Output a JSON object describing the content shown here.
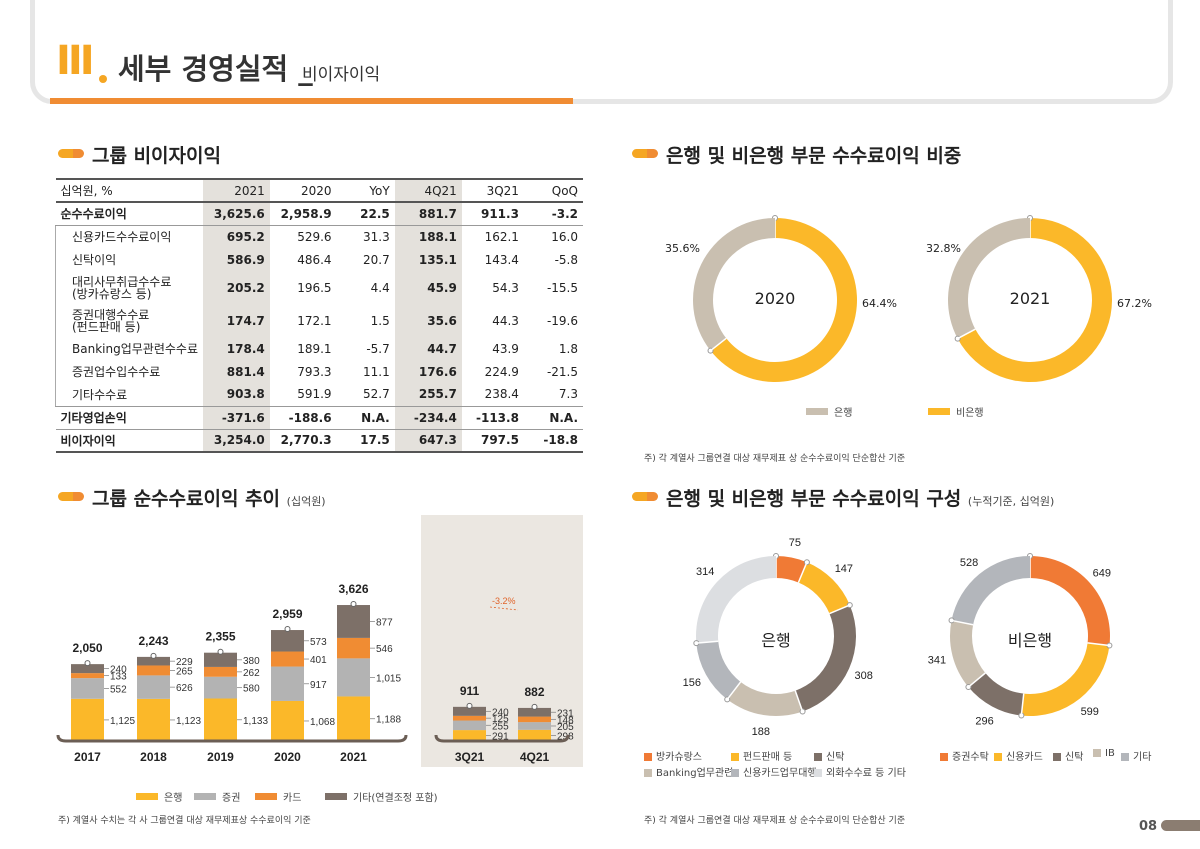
{
  "header": {
    "roman": "III",
    "title": "세부 경영실적 _",
    "subtitle": "비이자이익"
  },
  "sections": {
    "table_title": "그룹 비이자이익",
    "trend_title": "그룹 순수수료이익 추이",
    "trend_unit": "(십억원)",
    "share_title": "은행 및 비은행 부문 수수료이익 비중",
    "comp_title": "은행 및 비은행 부문 수수료이익 구성",
    "comp_unit": "(누적기준, 십억원)"
  },
  "table": {
    "headers": [
      "십억원, %",
      "2021",
      "2020",
      "YoY",
      "4Q21",
      "3Q21",
      "QoQ"
    ],
    "rows": [
      {
        "label": "순수수료이익",
        "v": [
          "3,625.6",
          "2,958.9",
          "22.5",
          "881.7",
          "911.3",
          "-3.2"
        ],
        "kind": "top"
      },
      {
        "label": "신용카드수수료이익",
        "v": [
          "695.2",
          "529.6",
          "31.3",
          "188.1",
          "162.1",
          "16.0"
        ],
        "kind": "sub"
      },
      {
        "label": "신탁이익",
        "v": [
          "586.9",
          "486.4",
          "20.7",
          "135.1",
          "143.4",
          "-5.8"
        ],
        "kind": "sub"
      },
      {
        "label": "대리사무취급수수료\n(방카슈랑스 등)",
        "v": [
          "205.2",
          "196.5",
          "4.4",
          "45.9",
          "54.3",
          "-15.5"
        ],
        "kind": "sub tall"
      },
      {
        "label": "증권대행수수료\n(펀드판매 등)",
        "v": [
          "174.7",
          "172.1",
          "1.5",
          "35.6",
          "44.3",
          "-19.6"
        ],
        "kind": "sub tall"
      },
      {
        "label": "Banking업무관련수수료",
        "v": [
          "178.4",
          "189.1",
          "-5.7",
          "44.7",
          "43.9",
          "1.8"
        ],
        "kind": "sub"
      },
      {
        "label": "증권업수입수수료",
        "v": [
          "881.4",
          "793.3",
          "11.1",
          "176.6",
          "224.9",
          "-21.5"
        ],
        "kind": "sub"
      },
      {
        "label": "기타수수료",
        "v": [
          "903.8",
          "591.9",
          "52.7",
          "255.7",
          "238.4",
          "7.3"
        ],
        "kind": "sub endsub"
      },
      {
        "label": "기타영업손익",
        "v": [
          "-371.6",
          "-188.6",
          "N.A.",
          "-234.4",
          "-113.8",
          "N.A."
        ],
        "kind": "top"
      },
      {
        "label": "비이자이익",
        "v": [
          "3,254.0",
          "2,770.3",
          "17.5",
          "647.3",
          "797.5",
          "-18.8"
        ],
        "kind": "last"
      }
    ]
  },
  "colors": {
    "bank": "#fbb829",
    "securities": "#b3b3b3",
    "card": "#f08c33",
    "other": "#7d7068",
    "nonbank_share": "#fbb829",
    "bank_share": "#c9bfb0",
    "panel_bg": "#ebe7e1"
  },
  "chart_data": [
    {
      "type": "bar",
      "stacked": true,
      "categories": [
        "2017",
        "2018",
        "2019",
        "2020",
        "2021"
      ],
      "totals": [
        "2,050",
        "2,243",
        "2,355",
        "2,959",
        "3,626"
      ],
      "series": [
        {
          "name": "은행",
          "values": [
            1125,
            1123,
            1133,
            1068,
            1188
          ],
          "labels": [
            "1,125",
            "1,123",
            "1,133",
            "1,068",
            "1,188"
          ]
        },
        {
          "name": "증권",
          "values": [
            552,
            626,
            580,
            917,
            1015
          ],
          "labels": [
            "552",
            "626",
            "580",
            "917",
            "1,015"
          ]
        },
        {
          "name": "카드",
          "values": [
            133,
            265,
            262,
            401,
            546
          ],
          "labels": [
            "133",
            "265",
            "262",
            "401",
            "546"
          ]
        },
        {
          "name": "기타(연결조정 포함)",
          "values": [
            240,
            229,
            380,
            573,
            877
          ],
          "labels": [
            "240",
            "229",
            "380",
            "573",
            "877"
          ]
        }
      ]
    },
    {
      "type": "bar",
      "stacked": true,
      "categories": [
        "3Q21",
        "4Q21"
      ],
      "totals": [
        "911",
        "882"
      ],
      "annotation": "-3.2%",
      "series": [
        {
          "name": "은행",
          "values": [
            291,
            298
          ],
          "labels": [
            "291",
            "298"
          ]
        },
        {
          "name": "증권",
          "values": [
            255,
            205
          ],
          "labels": [
            "255",
            "205"
          ]
        },
        {
          "name": "카드",
          "values": [
            125,
            148
          ],
          "labels": [
            "125",
            "148"
          ]
        },
        {
          "name": "기타(연결조정 포함)",
          "values": [
            240,
            231
          ],
          "labels": [
            "240",
            "231"
          ]
        }
      ]
    },
    {
      "type": "pie",
      "donut": true,
      "center": "2020",
      "slices": [
        {
          "name": "비은행",
          "value": 64.4,
          "label": "64.4%"
        },
        {
          "name": "은행",
          "value": 35.6,
          "label": "35.6%"
        }
      ]
    },
    {
      "type": "pie",
      "donut": true,
      "center": "2021",
      "slices": [
        {
          "name": "비은행",
          "value": 67.2,
          "label": "67.2%"
        },
        {
          "name": "은행",
          "value": 32.8,
          "label": "32.8%"
        }
      ]
    },
    {
      "type": "pie",
      "donut": true,
      "center": "은행",
      "slices": [
        {
          "name": "방카슈랑스",
          "value": 75,
          "label": "75"
        },
        {
          "name": "펀드판매 등",
          "value": 147,
          "label": "147"
        },
        {
          "name": "신탁",
          "value": 308,
          "label": "308"
        },
        {
          "name": "Banking업무관련",
          "value": 188,
          "label": "188"
        },
        {
          "name": "신용카드업무대행",
          "value": 156,
          "label": "156"
        },
        {
          "name": "외화수수료 등 기타",
          "value": 314,
          "label": "314"
        }
      ]
    },
    {
      "type": "pie",
      "donut": true,
      "center": "비은행",
      "slices": [
        {
          "name": "증권수탁",
          "value": 649,
          "label": "649"
        },
        {
          "name": "신용카드",
          "value": 599,
          "label": "599"
        },
        {
          "name": "신탁",
          "value": 296,
          "label": "296"
        },
        {
          "name": "IB",
          "value": 341,
          "label": "341"
        },
        {
          "name": "기타",
          "value": 528,
          "label": "528"
        }
      ]
    }
  ],
  "legends": {
    "share": [
      "은행",
      "비은행"
    ],
    "trend": [
      "은행",
      "증권",
      "카드",
      "기타(연결조정 포함)"
    ],
    "bank_comp": [
      "방카슈랑스",
      "펀드판매 등",
      "신탁",
      "Banking업무관련",
      "신용카드업무대행",
      "외화수수료 등 기타"
    ],
    "nonbank_comp": [
      "증권수탁",
      "신용카드",
      "신탁",
      "IB",
      "기타"
    ]
  },
  "footnotes": {
    "share": "주) 각 계열사 그룹연결 대상 재무제표 상 순수수료이익 단순합산 기준",
    "trend": "주) 계열사 수치는 각 사 그룹연결 대상 재무제표상 수수료이익 기준",
    "comp": "주) 각 계열사 그룹연결 대상 재무제표 상 순수수료이익 단순합산 기준"
  },
  "page_number": "08"
}
